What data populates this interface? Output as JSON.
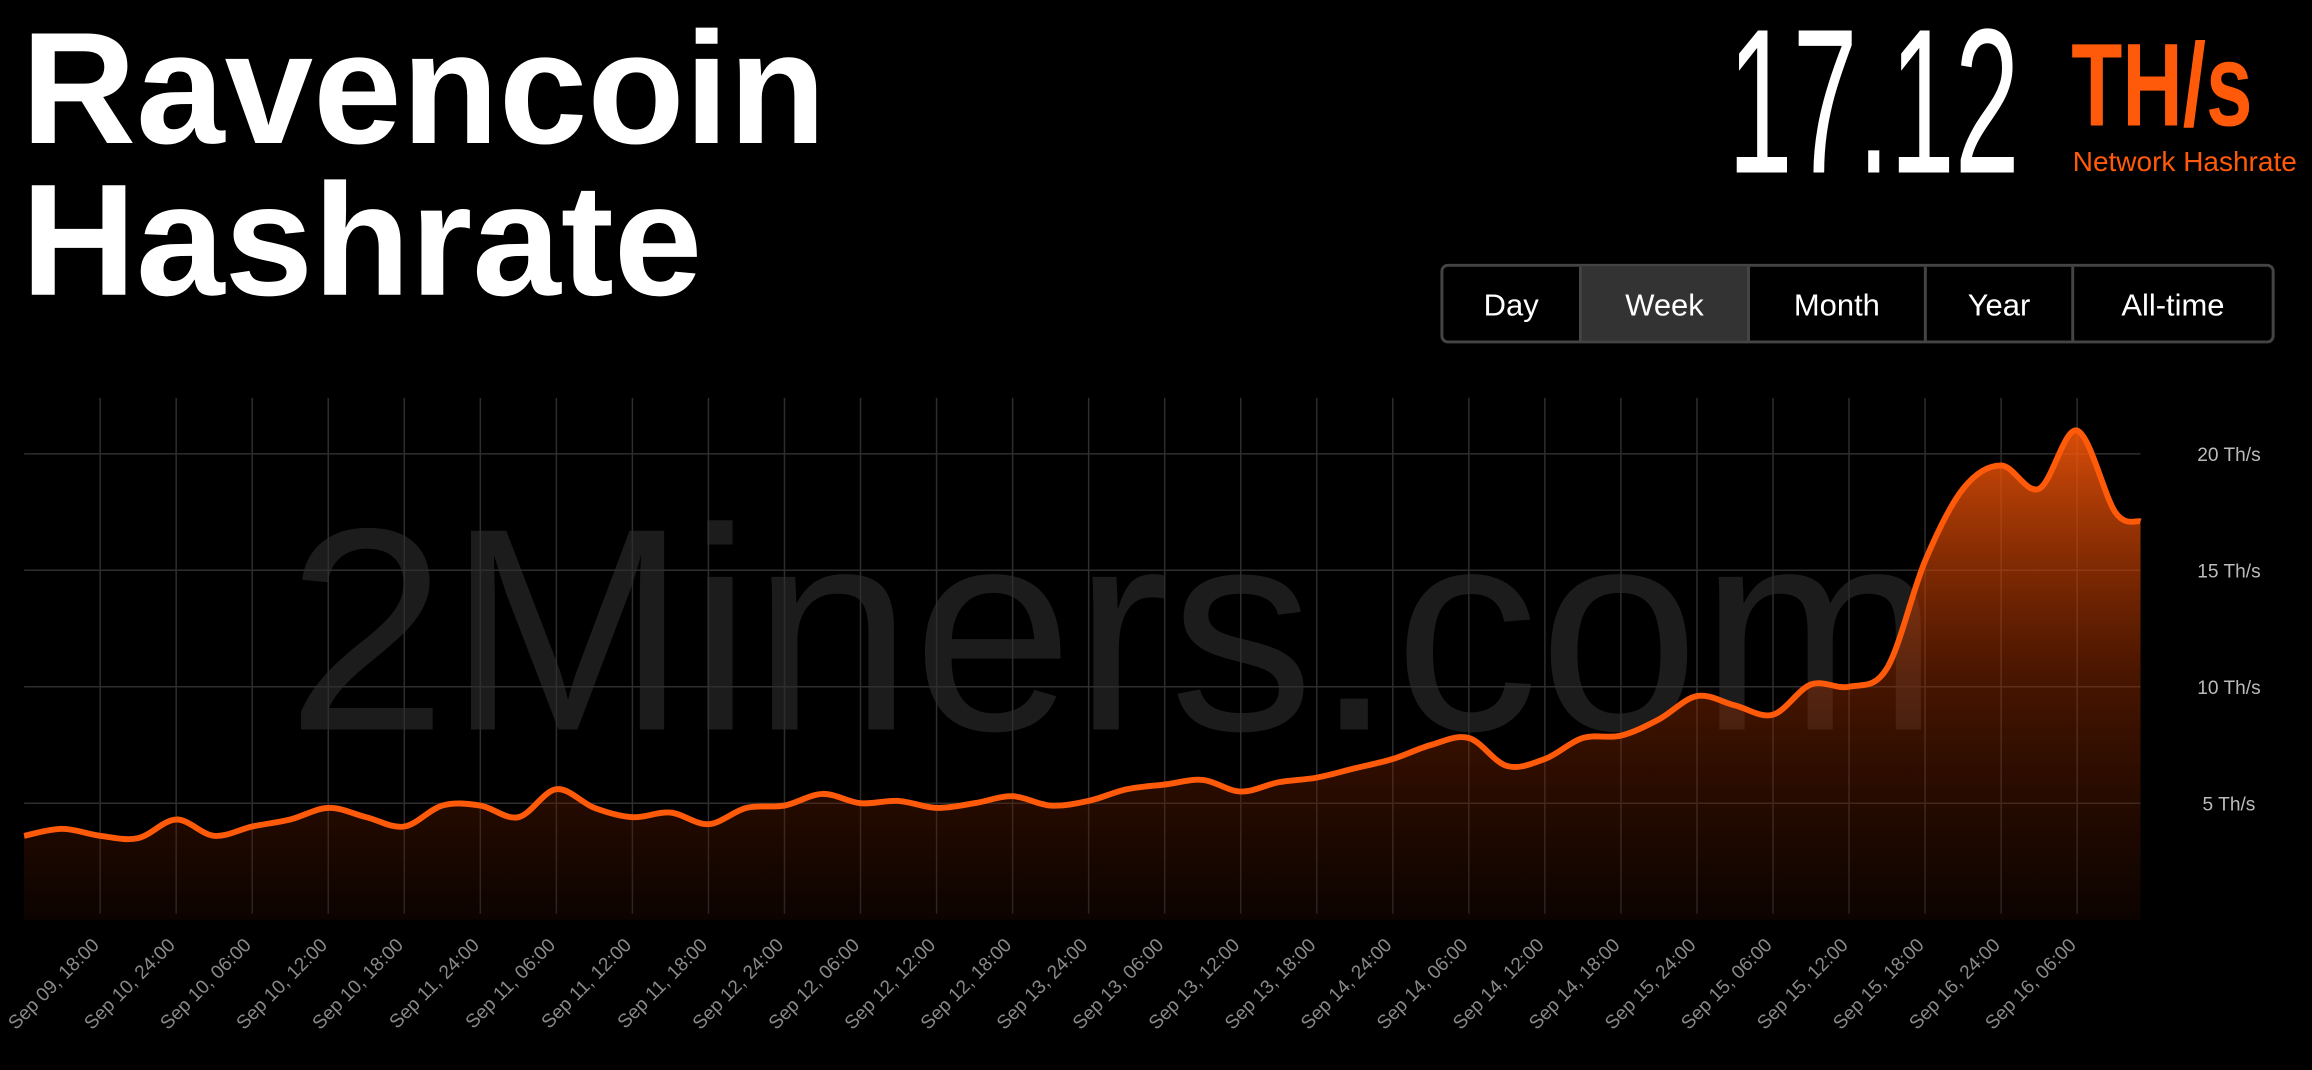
{
  "header": {
    "title": [
      "Ravencoin",
      "Hashrate"
    ],
    "hashrate": "17.12",
    "unit": "TH/s",
    "caption": "Network Hashrate"
  },
  "tabs": [
    "Day",
    "Week",
    "Month",
    "Year",
    "All-time"
  ],
  "active_tab": "Week",
  "watermark": "2Miners.com",
  "chart_data": {
    "type": "area",
    "color": "#ff5a0a",
    "grid": true,
    "x": [
      "Sep 09, 12:00",
      "Sep 09, 15:00",
      "Sep 09, 18:00",
      "Sep 09, 21:00",
      "Sep 10, 24:00",
      "Sep 10, 03:00",
      "Sep 10, 06:00",
      "Sep 10, 09:00",
      "Sep 10, 12:00",
      "Sep 10, 15:00",
      "Sep 10, 18:00",
      "Sep 10, 21:00",
      "Sep 11, 24:00",
      "Sep 11, 03:00",
      "Sep 11, 06:00",
      "Sep 11, 09:00",
      "Sep 11, 12:00",
      "Sep 11, 15:00",
      "Sep 11, 18:00",
      "Sep 11, 21:00",
      "Sep 12, 24:00",
      "Sep 12, 03:00",
      "Sep 12, 06:00",
      "Sep 12, 09:00",
      "Sep 12, 12:00",
      "Sep 12, 15:00",
      "Sep 12, 18:00",
      "Sep 12, 21:00",
      "Sep 13, 24:00",
      "Sep 13, 03:00",
      "Sep 13, 06:00",
      "Sep 13, 09:00",
      "Sep 13, 12:00",
      "Sep 13, 15:00",
      "Sep 13, 18:00",
      "Sep 13, 21:00",
      "Sep 14, 24:00",
      "Sep 14, 03:00",
      "Sep 14, 06:00",
      "Sep 14, 09:00",
      "Sep 14, 12:00",
      "Sep 14, 15:00",
      "Sep 14, 18:00",
      "Sep 14, 21:00",
      "Sep 15, 24:00",
      "Sep 15, 03:00",
      "Sep 15, 06:00",
      "Sep 15, 09:00",
      "Sep 15, 12:00",
      "Sep 15, 15:00",
      "Sep 15, 18:00",
      "Sep 15, 21:00",
      "Sep 16, 24:00",
      "Sep 16, 03:00",
      "Sep 16, 06:00",
      "Sep 16, 09:00",
      "Sep 16, 11:00"
    ],
    "values": [
      3.6,
      3.9,
      3.6,
      3.5,
      4.3,
      3.6,
      4.0,
      4.3,
      4.8,
      4.4,
      4.0,
      4.9,
      4.9,
      4.4,
      5.6,
      4.8,
      4.4,
      4.6,
      4.1,
      4.8,
      4.9,
      5.4,
      5.0,
      5.1,
      4.8,
      5.0,
      5.3,
      4.9,
      5.1,
      5.6,
      5.8,
      6.0,
      5.5,
      5.9,
      6.1,
      6.5,
      6.9,
      7.5,
      7.8,
      6.6,
      6.9,
      7.8,
      7.9,
      8.6,
      9.6,
      9.2,
      8.8,
      10.1,
      10.0,
      10.8,
      15.4,
      18.5,
      19.5,
      18.5,
      21.0,
      17.5,
      17.1
    ],
    "xlim": [
      "Sep 09, 12:00",
      "Sep 16, 11:00"
    ],
    "xticks": [
      "Sep 09, 18:00",
      "Sep 10, 24:00",
      "Sep 10, 06:00",
      "Sep 10, 12:00",
      "Sep 10, 18:00",
      "Sep 11, 24:00",
      "Sep 11, 06:00",
      "Sep 11, 12:00",
      "Sep 11, 18:00",
      "Sep 12, 24:00",
      "Sep 12, 06:00",
      "Sep 12, 12:00",
      "Sep 12, 18:00",
      "Sep 13, 24:00",
      "Sep 13, 06:00",
      "Sep 13, 12:00",
      "Sep 13, 18:00",
      "Sep 14, 24:00",
      "Sep 14, 06:00",
      "Sep 14, 12:00",
      "Sep 14, 18:00",
      "Sep 15, 24:00",
      "Sep 15, 06:00",
      "Sep 15, 12:00",
      "Sep 15, 18:00",
      "Sep 16, 24:00",
      "Sep 16, 06:00"
    ],
    "ylim": [
      0,
      22.4
    ],
    "yticks": [
      {
        "value": 5,
        "label": "5 Th/s"
      },
      {
        "value": 10,
        "label": "10 Th/s"
      },
      {
        "value": 15,
        "label": "15 Th/s"
      },
      {
        "value": 20,
        "label": "20 Th/s"
      }
    ]
  }
}
